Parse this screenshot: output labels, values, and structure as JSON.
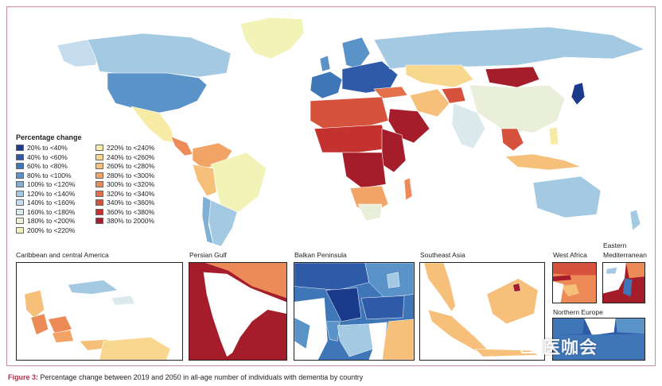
{
  "legend": {
    "title": "Percentage change",
    "items": [
      {
        "label": "20% to <40%",
        "color": "#1b3a8c"
      },
      {
        "label": "40% to <60%",
        "color": "#2e5aa8"
      },
      {
        "label": "60% to <80%",
        "color": "#3f76b8"
      },
      {
        "label": "80% to <100%",
        "color": "#5a93c8"
      },
      {
        "label": "100% to <120%",
        "color": "#7fb0d6"
      },
      {
        "label": "120% to <140%",
        "color": "#a3c9e3"
      },
      {
        "label": "140% to <160%",
        "color": "#c4dced"
      },
      {
        "label": "160% to <180%",
        "color": "#dce9ec"
      },
      {
        "label": "180% to <200%",
        "color": "#e9efd9"
      },
      {
        "label": "200% to <220%",
        "color": "#f3f3b8"
      },
      {
        "label": "220% to <240%",
        "color": "#f8eba6"
      },
      {
        "label": "240% to <260%",
        "color": "#f8d88e"
      },
      {
        "label": "260% to <280%",
        "color": "#f6c07a"
      },
      {
        "label": "280% to <300%",
        "color": "#f2a466"
      },
      {
        "label": "300% to <320%",
        "color": "#ec8a58"
      },
      {
        "label": "320% to <340%",
        "color": "#e36f4b"
      },
      {
        "label": "340% to <360%",
        "color": "#d6523c"
      },
      {
        "label": "360% to <380%",
        "color": "#c3322f"
      },
      {
        "label": "380% to 2000%",
        "color": "#a51c2a"
      }
    ]
  },
  "insets": {
    "caribbean": "Caribbean and central America",
    "persian_gulf": "Persian Gulf",
    "balkan": "Balkan Peninsula",
    "southeast_asia": "Southeast Asia",
    "west_africa": "West Africa",
    "eastern_med_line1": "Eastern",
    "eastern_med_line2": "Mediterranean",
    "northern_europe": "Northern Europe"
  },
  "caption": {
    "figure_label": "Figure 3:",
    "text": "Percentage change between 2019 and 2050 in all-age number of individuals with dementia by country"
  },
  "watermark": {
    "text": "医咖会"
  }
}
